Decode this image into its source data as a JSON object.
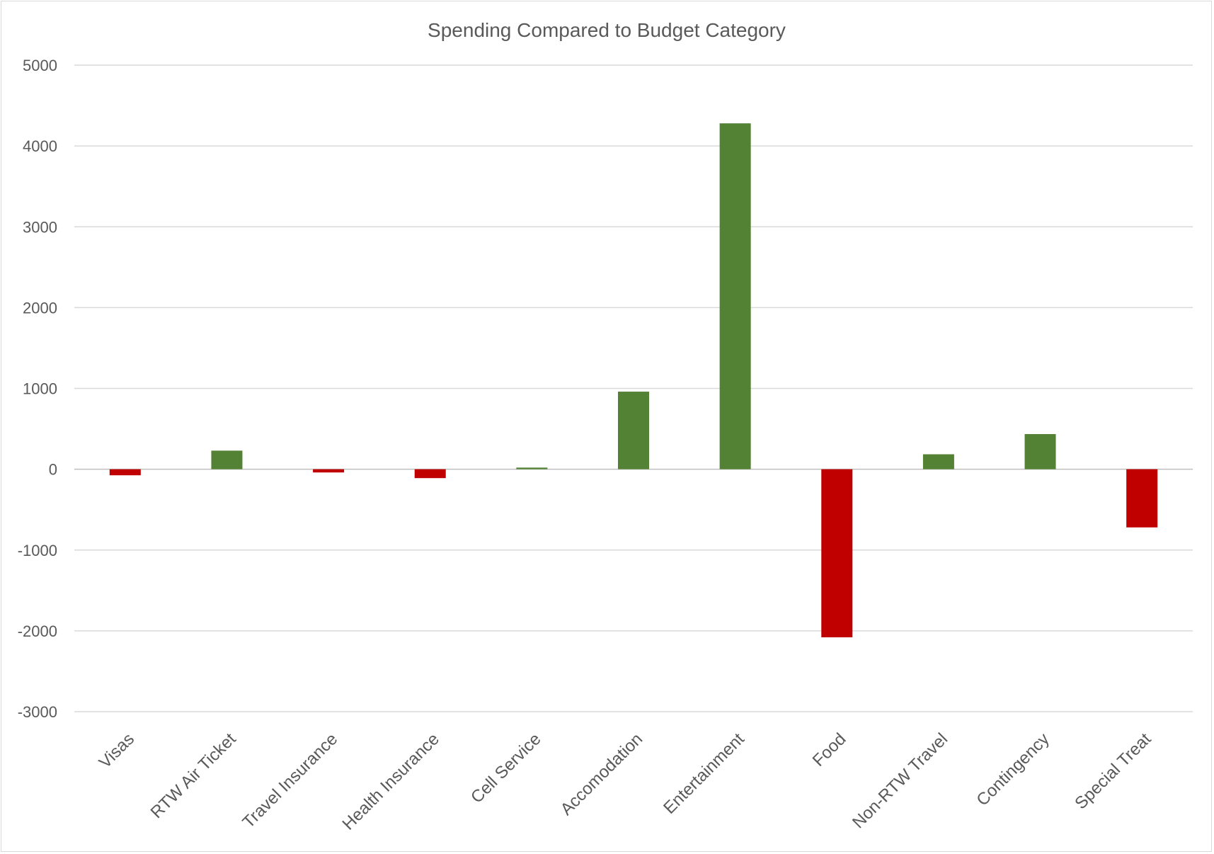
{
  "chart_data": {
    "type": "bar",
    "title": "Spending Compared to Budget Category",
    "xlabel": "",
    "ylabel": "",
    "ylim": [
      -3000,
      5000
    ],
    "yticks": [
      5000,
      4000,
      3000,
      2000,
      1000,
      0,
      -1000,
      -2000,
      -3000
    ],
    "grid": true,
    "categories": [
      "Visas",
      "RTW Air Ticket",
      "Travel Insurance",
      "Health Insurance",
      "Cell Service",
      "Accomodation",
      "Entertainment",
      "Food",
      "Non-RTW Travel",
      "Contingency",
      "Special Treat"
    ],
    "values": [
      -75,
      230,
      -40,
      -110,
      20,
      960,
      4280,
      -2080,
      185,
      435,
      -720
    ],
    "colors": {
      "positive": "#548235",
      "negative": "#c00000"
    }
  }
}
